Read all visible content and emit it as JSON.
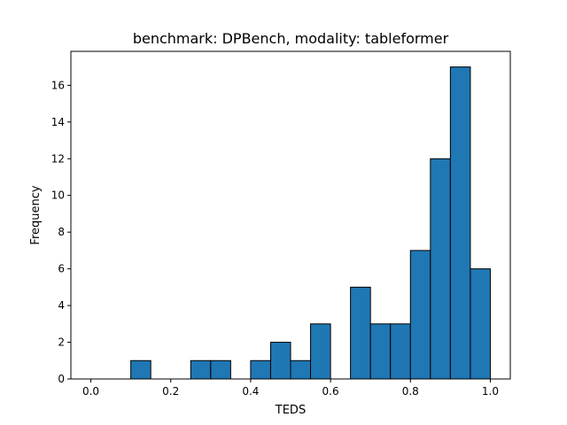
{
  "chart_data": {
    "type": "bar",
    "title": "benchmark: DPBench, modality: tableformer",
    "xlabel": "TEDS",
    "ylabel": "Frequency",
    "xlim": [
      -0.05,
      1.05
    ],
    "ylim": [
      0,
      17.85
    ],
    "xticks": [
      0.0,
      0.2,
      0.4,
      0.6,
      0.8,
      1.0
    ],
    "xtick_labels": [
      "0.0",
      "0.2",
      "0.4",
      "0.6",
      "0.8",
      "1.0"
    ],
    "yticks": [
      0,
      2,
      4,
      6,
      8,
      10,
      12,
      14,
      16
    ],
    "ytick_labels": [
      "0",
      "2",
      "4",
      "6",
      "8",
      "10",
      "12",
      "14",
      "16"
    ],
    "bin_width": 0.05,
    "bin_starts": [
      0.0,
      0.05,
      0.1,
      0.15,
      0.2,
      0.25,
      0.3,
      0.35,
      0.4,
      0.45,
      0.5,
      0.55,
      0.6,
      0.65,
      0.7,
      0.75,
      0.8,
      0.85,
      0.9,
      0.95
    ],
    "values": [
      0,
      0,
      1,
      0,
      0,
      1,
      1,
      0,
      1,
      2,
      1,
      3,
      0,
      5,
      3,
      3,
      7,
      12,
      17,
      6
    ],
    "bar_color": "#1f77b4",
    "edge_color": "#000000",
    "grid": false,
    "legend": "none"
  }
}
